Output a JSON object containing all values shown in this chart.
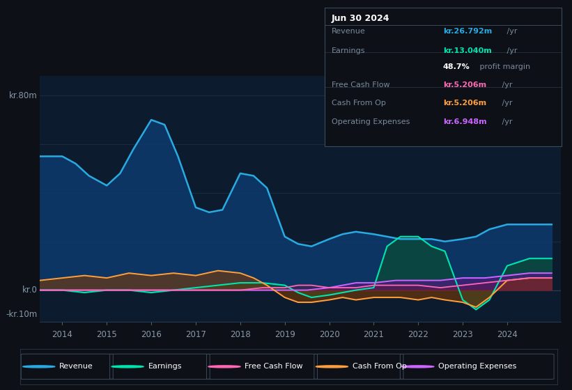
{
  "bg_color": "#0d1117",
  "chart_bg": "#0d1b2e",
  "ylabel_text": "kr.80m",
  "ylabel_neg": "-kr.10m",
  "zero_label": "kr.0",
  "ylim": [
    -13,
    88
  ],
  "xlim": [
    2013.5,
    2025.2
  ],
  "revenue_color": "#29abe2",
  "earnings_color": "#00e5b0",
  "fcf_color": "#ff69b4",
  "cashop_color": "#ffa040",
  "opex_color": "#cc66ff",
  "revenue_x": [
    2013.5,
    2014.0,
    2014.3,
    2014.6,
    2015.0,
    2015.3,
    2015.6,
    2016.0,
    2016.3,
    2016.6,
    2017.0,
    2017.3,
    2017.6,
    2018.0,
    2018.3,
    2018.6,
    2019.0,
    2019.3,
    2019.6,
    2020.0,
    2020.3,
    2020.6,
    2021.0,
    2021.3,
    2021.6,
    2022.0,
    2022.3,
    2022.6,
    2023.0,
    2023.3,
    2023.6,
    2024.0,
    2024.5,
    2025.0
  ],
  "revenue_y": [
    55,
    55,
    52,
    47,
    43,
    48,
    58,
    70,
    68,
    55,
    34,
    32,
    33,
    48,
    47,
    42,
    22,
    19,
    18,
    21,
    23,
    24,
    23,
    22,
    21,
    21,
    21,
    20,
    21,
    22,
    25,
    27,
    27,
    27
  ],
  "earnings_x": [
    2013.5,
    2014.0,
    2014.5,
    2015.0,
    2015.5,
    2016.0,
    2016.5,
    2017.0,
    2017.5,
    2018.0,
    2018.5,
    2019.0,
    2019.3,
    2019.6,
    2020.0,
    2020.3,
    2020.6,
    2021.0,
    2021.3,
    2021.6,
    2022.0,
    2022.3,
    2022.6,
    2023.0,
    2023.3,
    2023.6,
    2024.0,
    2024.5,
    2025.0
  ],
  "earnings_y": [
    0,
    0,
    -1,
    0,
    0,
    -1,
    0,
    1,
    2,
    3,
    3,
    2,
    -1,
    -3,
    -2,
    -1,
    0,
    1,
    18,
    22,
    22,
    18,
    16,
    -4,
    -8,
    -4,
    10,
    13,
    13
  ],
  "fcf_x": [
    2013.5,
    2014.0,
    2015.0,
    2016.0,
    2017.0,
    2017.5,
    2018.0,
    2018.5,
    2019.0,
    2019.3,
    2019.6,
    2020.0,
    2020.3,
    2020.6,
    2021.0,
    2021.3,
    2021.6,
    2022.0,
    2022.5,
    2023.0,
    2023.5,
    2024.0,
    2024.5,
    2025.0
  ],
  "fcf_y": [
    0,
    0,
    0,
    0,
    0,
    0,
    0,
    1,
    1,
    2,
    2,
    1,
    1,
    1,
    2,
    2,
    2,
    2,
    1,
    2,
    3,
    4,
    5,
    5
  ],
  "cashop_x": [
    2013.5,
    2014.0,
    2014.5,
    2015.0,
    2015.5,
    2016.0,
    2016.5,
    2017.0,
    2017.5,
    2018.0,
    2018.3,
    2018.6,
    2019.0,
    2019.3,
    2019.6,
    2020.0,
    2020.3,
    2020.6,
    2021.0,
    2021.3,
    2021.6,
    2022.0,
    2022.3,
    2022.6,
    2023.0,
    2023.3,
    2023.6,
    2024.0,
    2024.5,
    2025.0
  ],
  "cashop_y": [
    4,
    5,
    6,
    5,
    7,
    6,
    7,
    6,
    8,
    7,
    5,
    2,
    -3,
    -5,
    -5,
    -4,
    -3,
    -4,
    -3,
    -3,
    -3,
    -4,
    -3,
    -4,
    -5,
    -7,
    -3,
    4,
    5,
    5
  ],
  "opex_x": [
    2013.5,
    2014.0,
    2015.0,
    2016.0,
    2017.0,
    2018.0,
    2019.0,
    2019.5,
    2020.0,
    2020.3,
    2020.6,
    2021.0,
    2021.5,
    2022.0,
    2022.5,
    2023.0,
    2023.5,
    2024.0,
    2024.5,
    2025.0
  ],
  "opex_y": [
    0,
    0,
    0,
    0,
    0,
    0,
    0,
    0,
    1,
    2,
    3,
    3,
    4,
    4,
    4,
    5,
    5,
    6,
    7,
    7
  ],
  "grid_y_vals": [
    0,
    20,
    40,
    60,
    80
  ],
  "legend_items": [
    {
      "label": "Revenue",
      "color": "#29abe2"
    },
    {
      "label": "Earnings",
      "color": "#00e5b0"
    },
    {
      "label": "Free Cash Flow",
      "color": "#ff69b4"
    },
    {
      "label": "Cash From Op",
      "color": "#ffa040"
    },
    {
      "label": "Operating Expenses",
      "color": "#cc66ff"
    }
  ],
  "tooltip": {
    "title": "Jun 30 2024",
    "rows": [
      {
        "label": "Revenue",
        "value": "kr.26.792m",
        "unit": " /yr",
        "val_color": "#29abe2"
      },
      {
        "label": "Earnings",
        "value": "kr.13.040m",
        "unit": " /yr",
        "val_color": "#00e5b0"
      },
      {
        "label": "",
        "value": "48.7%",
        "unit": " profit margin",
        "val_color": "#ffffff"
      },
      {
        "label": "Free Cash Flow",
        "value": "kr.5.206m",
        "unit": " /yr",
        "val_color": "#ff69b4"
      },
      {
        "label": "Cash From Op",
        "value": "kr.5.206m",
        "unit": " /yr",
        "val_color": "#ffa040"
      },
      {
        "label": "Operating Expenses",
        "value": "kr.6.948m",
        "unit": " /yr",
        "val_color": "#cc66ff"
      }
    ]
  }
}
